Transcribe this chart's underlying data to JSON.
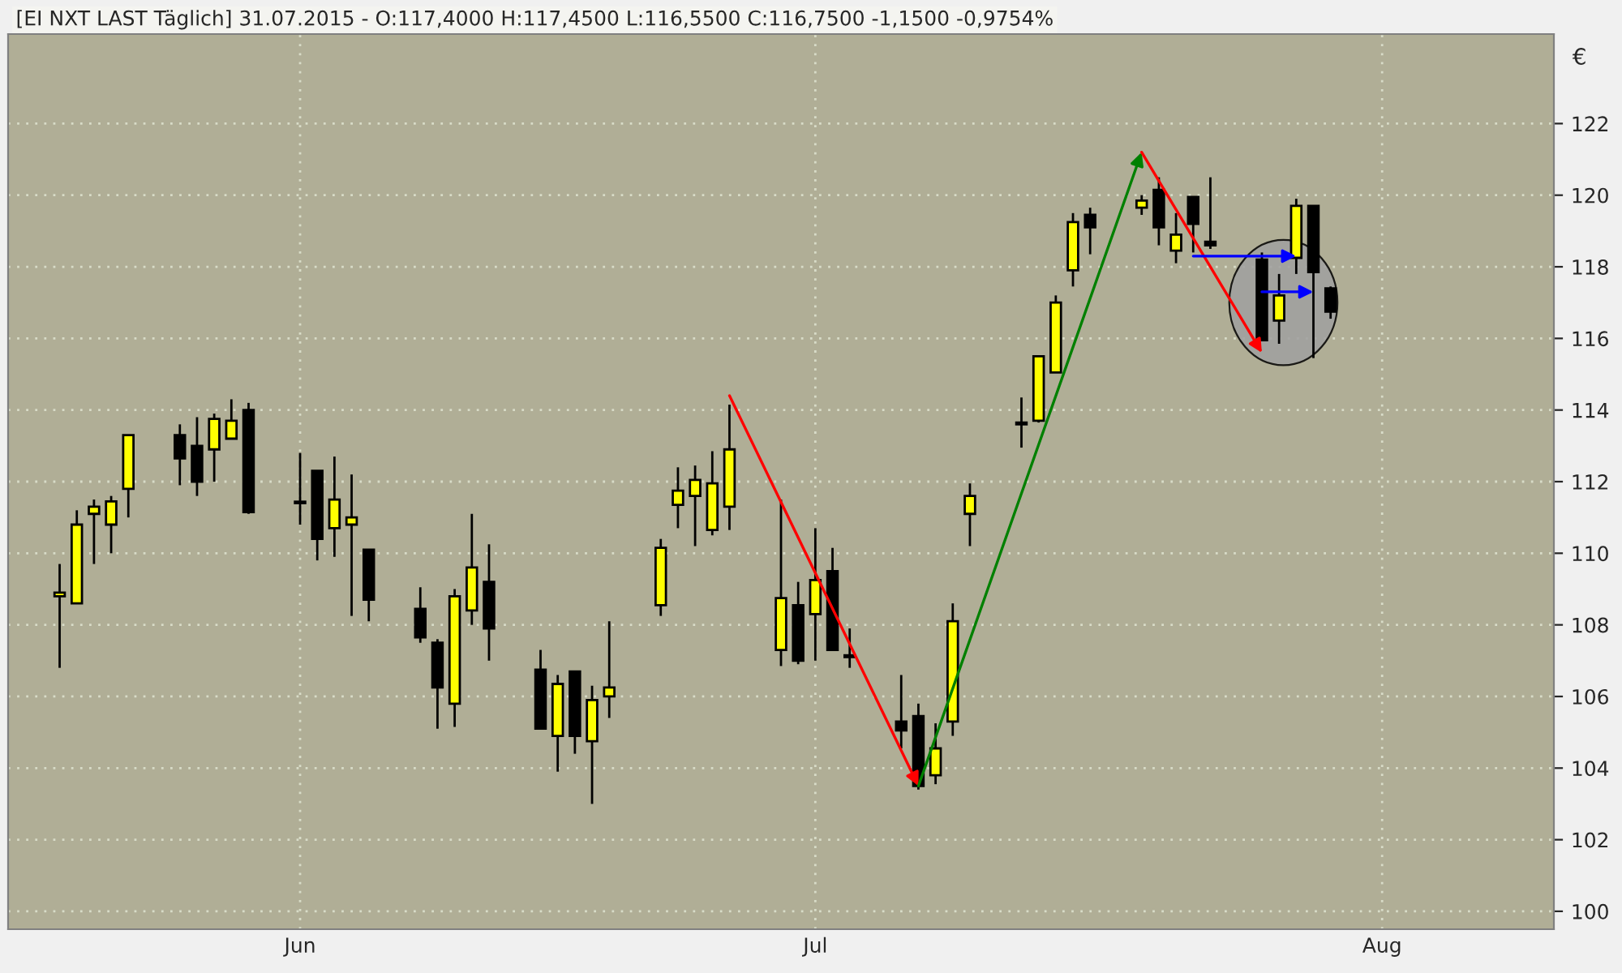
{
  "chart_data": {
    "type": "candlestick",
    "title": "[EI NXT LAST Täglich] 31.07.2015 - O:117,4000 H:117,4500 L:116,5500 C:116,7500 -1,1500 -0,9754%",
    "ylabel": "€",
    "x": [
      "2015-05-18",
      "2015-05-19",
      "2015-05-20",
      "2015-05-21",
      "2015-05-22",
      "2015-05-25",
      "2015-05-26",
      "2015-05-27",
      "2015-05-28",
      "2015-05-29",
      "2015-06-01",
      "2015-06-02",
      "2015-06-03",
      "2015-06-04",
      "2015-06-05",
      "2015-06-08",
      "2015-06-09",
      "2015-06-10",
      "2015-06-11",
      "2015-06-12",
      "2015-06-15",
      "2015-06-16",
      "2015-06-17",
      "2015-06-18",
      "2015-06-19",
      "2015-06-22",
      "2015-06-23",
      "2015-06-24",
      "2015-06-25",
      "2015-06-26",
      "2015-06-29",
      "2015-06-30",
      "2015-07-01",
      "2015-07-02",
      "2015-07-03",
      "2015-07-06",
      "2015-07-07",
      "2015-07-08",
      "2015-07-09",
      "2015-07-10",
      "2015-07-13",
      "2015-07-14",
      "2015-07-15",
      "2015-07-16",
      "2015-07-17",
      "2015-07-20",
      "2015-07-21",
      "2015-07-22",
      "2015-07-23",
      "2015-07-24",
      "2015-07-27",
      "2015-07-28",
      "2015-07-29",
      "2015-07-30",
      "2015-07-31"
    ],
    "ohlc": [
      [
        108.8,
        109.7,
        106.8,
        108.9
      ],
      [
        108.6,
        111.2,
        108.6,
        110.8
      ],
      [
        111.1,
        111.5,
        109.7,
        111.3
      ],
      [
        110.8,
        111.6,
        110.0,
        111.45
      ],
      [
        111.8,
        113.3,
        111.0,
        113.3
      ],
      [
        113.3,
        113.6,
        111.9,
        112.65
      ],
      [
        113.0,
        113.8,
        111.6,
        112.0
      ],
      [
        112.9,
        113.9,
        112.0,
        113.75
      ],
      [
        113.2,
        114.3,
        113.2,
        113.7
      ],
      [
        114.0,
        114.2,
        111.1,
        111.15
      ],
      [
        111.4,
        112.8,
        110.8,
        111.4
      ],
      [
        112.3,
        112.3,
        109.8,
        110.4
      ],
      [
        110.7,
        112.7,
        109.9,
        111.5
      ],
      [
        110.8,
        112.2,
        108.25,
        111.0
      ],
      [
        110.1,
        110.1,
        108.1,
        108.7
      ],
      [
        108.45,
        109.05,
        107.5,
        107.65
      ],
      [
        107.5,
        107.6,
        105.1,
        106.25
      ],
      [
        105.8,
        109.0,
        105.15,
        108.8
      ],
      [
        108.4,
        111.1,
        108.0,
        109.6
      ],
      [
        109.2,
        110.25,
        107.0,
        107.9
      ],
      [
        106.75,
        107.3,
        105.1,
        105.1
      ],
      [
        104.9,
        106.6,
        103.9,
        106.35
      ],
      [
        106.7,
        106.7,
        104.4,
        104.9
      ],
      [
        104.75,
        106.3,
        103.0,
        105.9
      ],
      [
        106.0,
        108.1,
        105.4,
        106.25
      ],
      [
        108.55,
        110.4,
        108.25,
        110.15
      ],
      [
        111.35,
        112.4,
        110.7,
        111.75
      ],
      [
        111.6,
        112.45,
        110.2,
        112.05
      ],
      [
        110.65,
        112.85,
        110.5,
        111.95
      ],
      [
        111.3,
        114.15,
        110.65,
        112.9
      ],
      [
        107.3,
        111.5,
        106.85,
        108.75
      ],
      [
        108.55,
        109.2,
        106.9,
        107.0
      ],
      [
        108.3,
        110.7,
        107.0,
        109.25
      ],
      [
        109.5,
        110.15,
        107.3,
        107.3
      ],
      [
        107.1,
        107.9,
        106.8,
        107.15
      ],
      [
        105.3,
        106.6,
        104.55,
        105.05
      ],
      [
        105.45,
        105.8,
        103.4,
        103.5
      ],
      [
        103.8,
        105.25,
        103.55,
        104.55
      ],
      [
        105.3,
        108.6,
        104.9,
        108.1
      ],
      [
        111.1,
        111.95,
        110.2,
        111.6
      ],
      [
        113.6,
        114.35,
        112.95,
        113.65
      ],
      [
        113.7,
        115.5,
        113.65,
        115.5
      ],
      [
        115.05,
        117.2,
        115.05,
        117.0
      ],
      [
        117.9,
        119.5,
        117.45,
        119.25
      ],
      [
        119.45,
        119.65,
        118.35,
        119.1
      ],
      [
        119.65,
        120.0,
        119.45,
        119.85
      ],
      [
        120.15,
        120.5,
        118.6,
        119.1
      ],
      [
        118.45,
        119.5,
        118.1,
        118.9
      ],
      [
        119.95,
        119.95,
        118.4,
        119.2
      ],
      [
        118.7,
        120.5,
        118.5,
        118.6
      ],
      [
        118.2,
        118.4,
        115.95,
        115.95
      ],
      [
        116.5,
        117.8,
        115.85,
        117.2
      ],
      [
        118.25,
        119.9,
        117.8,
        119.7
      ],
      [
        119.7,
        119.7,
        115.45,
        117.85
      ],
      [
        117.4,
        117.45,
        116.55,
        116.75
      ]
    ],
    "colors": [
      "#ffff00",
      "#ffff00",
      "#ffff00",
      "#ffff00",
      "#ffff00",
      "#000000",
      "#000000",
      "#ffff00",
      "#ffff00",
      "#000000",
      "#000000",
      "#000000",
      "#ffff00",
      "#ffff00",
      "#000000",
      "#000000",
      "#000000",
      "#ffff00",
      "#ffff00",
      "#000000",
      "#000000",
      "#ffff00",
      "#000000",
      "#ffff00",
      "#ffff00",
      "#ffff00",
      "#ffff00",
      "#ffff00",
      "#ffff00",
      "#ffff00",
      "#ffff00",
      "#000000",
      "#ffff00",
      "#000000",
      "#ffff00",
      "#000000",
      "#000000",
      "#ffff00",
      "#ffff00",
      "#ffff00",
      "#ffff00",
      "#ffff00",
      "#ffff00",
      "#ffff00",
      "#000000",
      "#ffff00",
      "#000000",
      "#ffff00",
      "#000000",
      "#000000",
      "#000000",
      "#ffff00",
      "#ffff00",
      "#000000",
      "#000000"
    ],
    "xlim": [
      "2015-05-15",
      "2015-08-13"
    ],
    "xticks": [
      {
        "value": "2015-06-01",
        "label": "Jun"
      },
      {
        "value": "2015-07-01",
        "label": "Jul"
      },
      {
        "value": "2015-08-03",
        "label": "Aug"
      }
    ],
    "ylim": [
      99.5,
      124.5
    ],
    "yticks": [
      100,
      102,
      104,
      106,
      108,
      110,
      112,
      114,
      116,
      118,
      120,
      122
    ],
    "grid": true
  }
}
